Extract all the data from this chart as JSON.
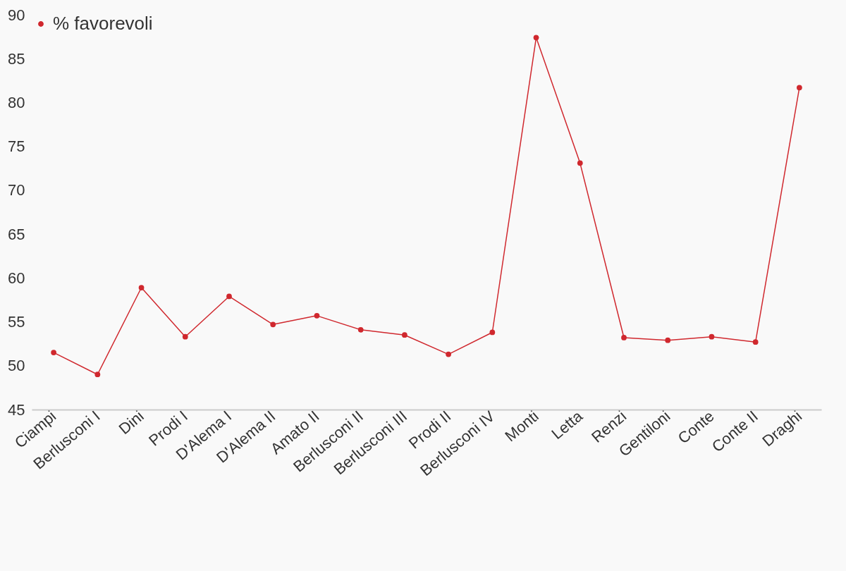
{
  "chart_data": {
    "type": "line",
    "categories": [
      "Ciampi",
      "Berlusconi I",
      "Dini",
      "Prodi I",
      "D'Alema I",
      "D'Alema II",
      "Amato II",
      "Berlusconi II",
      "Berlusconi III",
      "Prodi II",
      "Berlusconi IV",
      "Monti",
      "Letta",
      "Renzi",
      "Gentiloni",
      "Conte",
      "Conte II",
      "Draghi"
    ],
    "series": [
      {
        "name": "% favorevoli",
        "color": "#d0282e",
        "values": [
          51.5,
          49.0,
          58.9,
          53.3,
          57.9,
          54.7,
          55.7,
          54.1,
          53.5,
          51.3,
          53.8,
          87.4,
          73.1,
          53.2,
          52.9,
          53.3,
          52.7,
          81.7
        ]
      }
    ],
    "ylim": [
      45,
      90
    ],
    "yticks": [
      45,
      50,
      55,
      60,
      65,
      70,
      75,
      80,
      85,
      90
    ],
    "grid": false,
    "legend": "top left",
    "marker": "circle",
    "line_style": "solid"
  }
}
